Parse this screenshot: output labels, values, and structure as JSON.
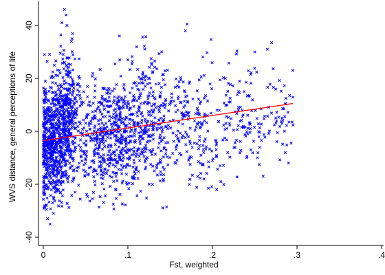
{
  "chart_data": {
    "type": "scatter",
    "title": "",
    "xlabel": "Fst, weighted",
    "ylabel": "WVS distance, general perceptions of life",
    "xlim": [
      0,
      0.4
    ],
    "ylim": [
      -40,
      45
    ],
    "xticks": [
      {
        "value": 0,
        "label": "0"
      },
      {
        "value": 0.1,
        "label": ".1"
      },
      {
        "value": 0.2,
        "label": ".2"
      },
      {
        "value": 0.3,
        "label": ".3"
      },
      {
        "value": 0.4,
        "label": ".4"
      }
    ],
    "yticks": [
      {
        "value": -40,
        "label": "-40"
      },
      {
        "value": -20,
        "label": "-20"
      },
      {
        "value": 0,
        "label": "0"
      },
      {
        "value": 20,
        "label": "20"
      },
      {
        "value": 40,
        "label": "40"
      }
    ],
    "grid": false,
    "marker": "x",
    "point_color": "#0000ff",
    "fit_line": {
      "color": "#ff0000",
      "points": [
        [
          0,
          -3.5
        ],
        [
          0.295,
          10.5
        ]
      ]
    },
    "clusters": [
      {
        "x_center": 0.012,
        "x_spread": 0.011,
        "y_center": -4,
        "y_spread": 11,
        "count": 650
      },
      {
        "x_center": 0.028,
        "x_spread": 0.007,
        "y_center": 10,
        "y_spread": 11,
        "count": 220
      },
      {
        "x_center": 0.075,
        "x_spread": 0.028,
        "y_center": -2,
        "y_spread": 11,
        "count": 620
      },
      {
        "x_center": 0.13,
        "x_spread": 0.022,
        "y_center": 4,
        "y_spread": 11,
        "count": 330
      },
      {
        "x_center": 0.18,
        "x_spread": 0.018,
        "y_center": 1,
        "y_spread": 11,
        "count": 110
      },
      {
        "x_center": 0.235,
        "x_spread": 0.018,
        "y_center": 6,
        "y_spread": 10,
        "count": 120
      },
      {
        "x_center": 0.28,
        "x_spread": 0.012,
        "y_center": 6,
        "y_spread": 9,
        "count": 45
      }
    ],
    "outliers": [
      [
        0.025,
        46
      ],
      [
        0.027,
        44
      ],
      [
        0.022,
        41
      ],
      [
        0.028,
        40
      ],
      [
        0.17,
        40.5
      ],
      [
        0.168,
        38
      ],
      [
        0.27,
        33.5
      ],
      [
        0.265,
        31
      ],
      [
        0.25,
        30
      ],
      [
        0.013,
        25
      ],
      [
        0.005,
        -33
      ],
      [
        0.008,
        -35
      ],
      [
        0.012,
        -31
      ],
      [
        0.1,
        27
      ],
      [
        0.12,
        31
      ],
      [
        0.205,
        -22
      ],
      [
        0.21,
        -19
      ],
      [
        0.19,
        -18
      ],
      [
        0.295,
        23
      ],
      [
        0.29,
        -12
      ],
      [
        0.26,
        -17
      ],
      [
        0.003,
        -28
      ],
      [
        0.09,
        36
      ],
      [
        0.14,
        30
      ]
    ]
  }
}
